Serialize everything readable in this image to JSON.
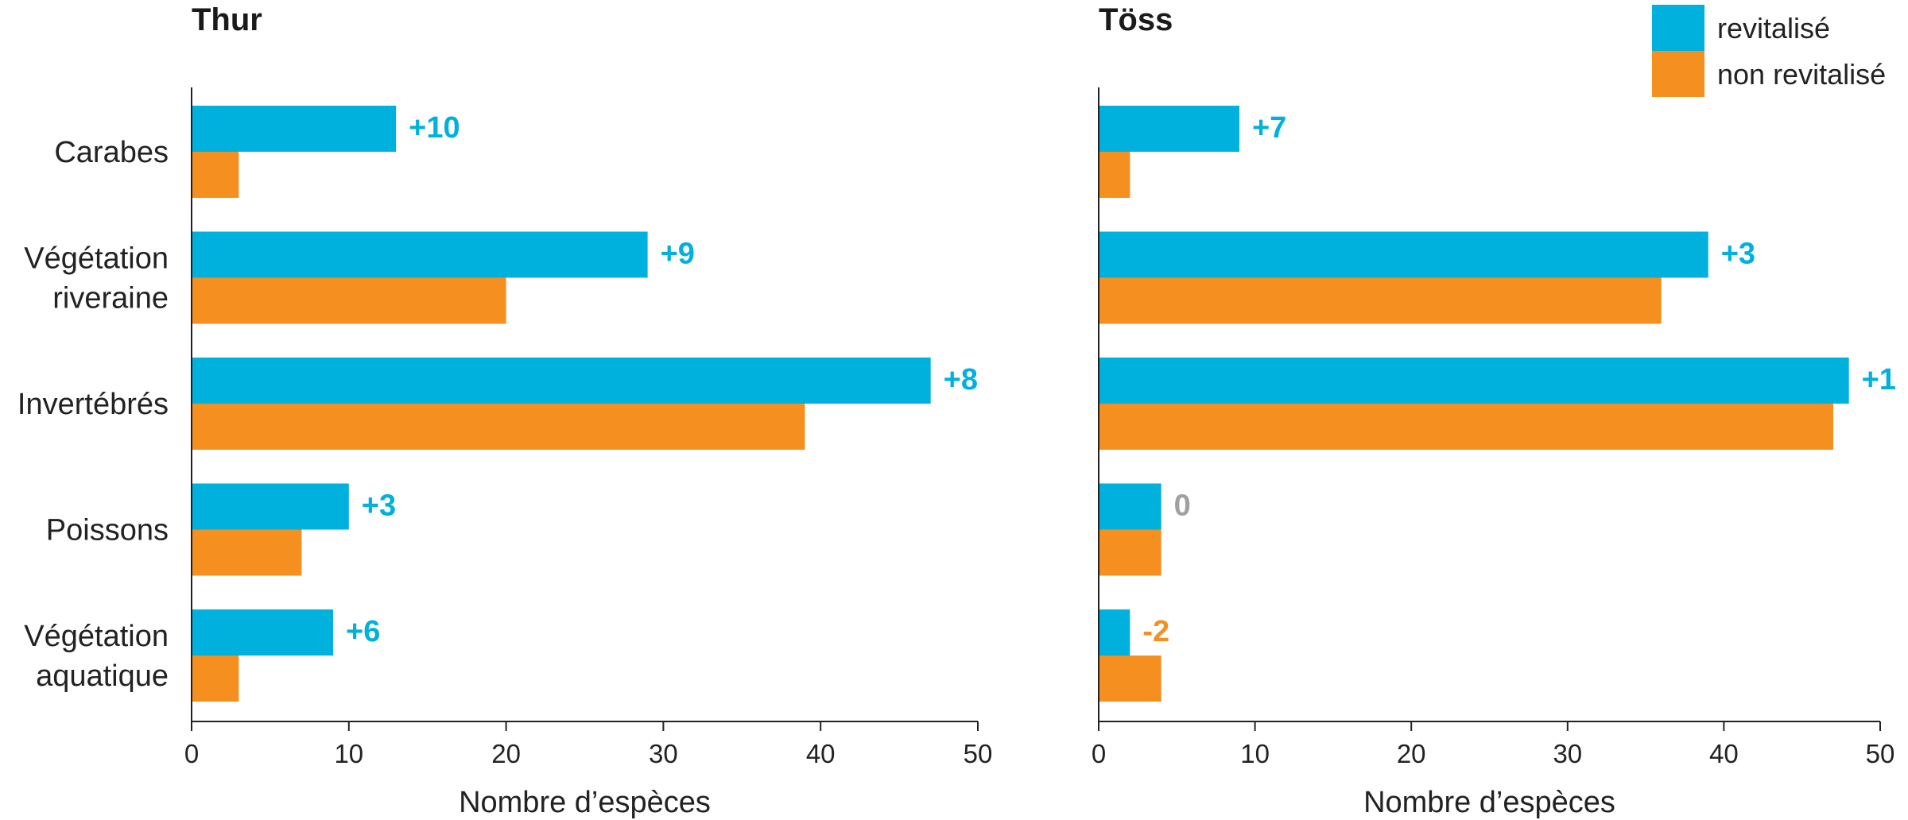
{
  "colors": {
    "revitalise": "#00b1dd",
    "non_revitalise": "#f58f20",
    "neutral": "#a0a0a0",
    "text": "#222222"
  },
  "chart_data": [
    {
      "type": "bar",
      "orientation": "horizontal",
      "title": "Thur",
      "categories": [
        "Carabes",
        "Végétation\nriveraine",
        "Invertébrés",
        "Poissons",
        "Végétation\naquatique"
      ],
      "series": [
        {
          "name": "revitalisé",
          "values": [
            13,
            29,
            47,
            10,
            9
          ]
        },
        {
          "name": "non revitalisé",
          "values": [
            3,
            20,
            39,
            7,
            3
          ]
        }
      ],
      "data_labels": [
        "+10",
        "+9",
        "+8",
        "+3",
        "+6"
      ],
      "xlabel": "Nombre d’espèces",
      "xlim": [
        0,
        50
      ],
      "xticks": [
        0,
        10,
        20,
        30,
        40,
        50
      ],
      "grid": false
    },
    {
      "type": "bar",
      "orientation": "horizontal",
      "title": "Töss",
      "categories": [
        "Carabes",
        "Végétation\nriveraine",
        "Invertébrés",
        "Poissons",
        "Végétation\naquatique"
      ],
      "series": [
        {
          "name": "revitalisé",
          "values": [
            9,
            39,
            48,
            4,
            2
          ]
        },
        {
          "name": "non revitalisé",
          "values": [
            2,
            36,
            47,
            4,
            4
          ]
        }
      ],
      "data_labels": [
        "+7",
        "+3",
        "+1",
        "0",
        "-2"
      ],
      "xlabel": "Nombre d’espèces",
      "xlim": [
        0,
        50
      ],
      "xticks": [
        0,
        10,
        20,
        30,
        40,
        50
      ],
      "grid": false
    }
  ],
  "legend": {
    "position": "top-right",
    "items": [
      {
        "label": "revitalisé",
        "color": "#00b1dd"
      },
      {
        "label": "non revitalisé",
        "color": "#f58f20"
      }
    ]
  }
}
